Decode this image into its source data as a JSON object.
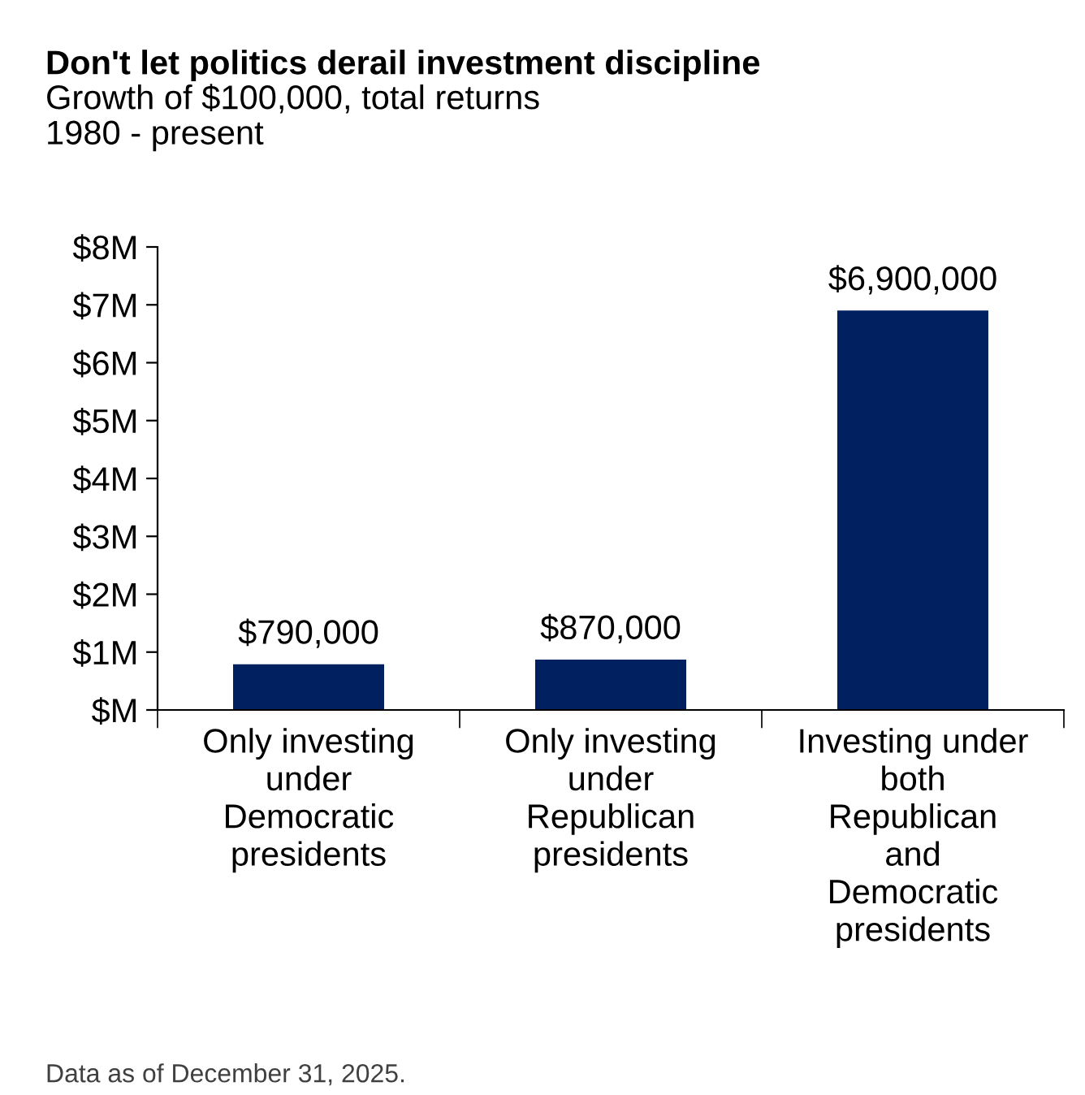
{
  "chart_data": {
    "type": "bar",
    "title": "Don't let politics derail investment discipline",
    "subtitle": "Growth of $100,000, total returns\n1980 - present",
    "categories": [
      "Only investing\nunder\nDemocratic\npresidents",
      "Only investing\nunder\nRepublican\npresidents",
      "Investing under\nboth\nRepublican\nand\nDemocratic\npresidents"
    ],
    "values": [
      790000,
      870000,
      6900000
    ],
    "value_labels": [
      "$790,000",
      "$870,000",
      "$6,900,000"
    ],
    "color": "#002060",
    "ylim": [
      0,
      8000000
    ],
    "yticks": [
      {
        "value": 0,
        "label": "$M"
      },
      {
        "value": 1000000,
        "label": "$1M"
      },
      {
        "value": 2000000,
        "label": "$2M"
      },
      {
        "value": 3000000,
        "label": "$3M"
      },
      {
        "value": 4000000,
        "label": "$4M"
      },
      {
        "value": 5000000,
        "label": "$5M"
      },
      {
        "value": 6000000,
        "label": "$6M"
      },
      {
        "value": 7000000,
        "label": "$7M"
      },
      {
        "value": 8000000,
        "label": "$8M"
      }
    ],
    "grid": false,
    "legend": false,
    "annotations": [
      "Data as of December 31, 2025."
    ]
  }
}
